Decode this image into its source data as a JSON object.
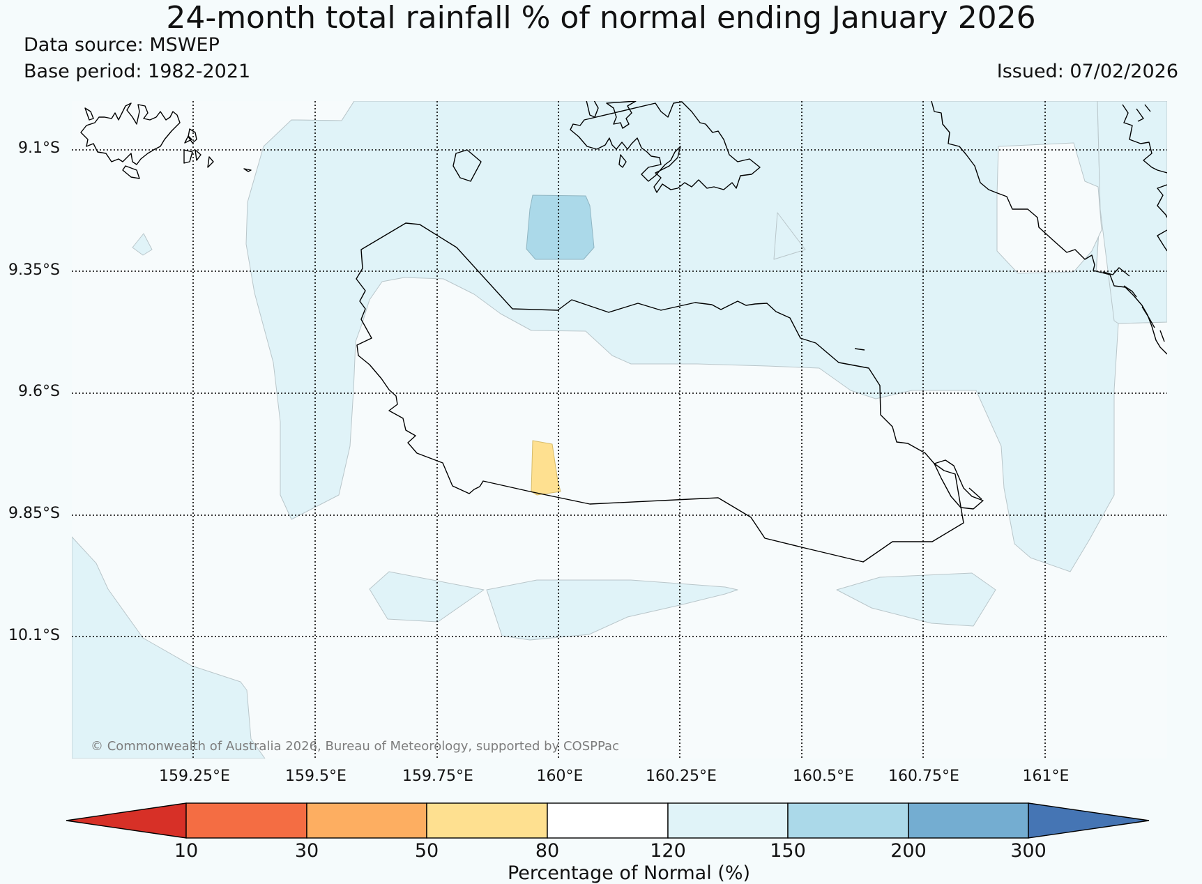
{
  "title": "24-month total rainfall % of normal ending January 2026",
  "data_source": "Data source: MSWEP",
  "base_period": "Base period: 1982-2021",
  "issued": "Issued: 07/02/2026",
  "copyright": "© Commonwealth of Australia 2026, Bureau of Meteorology, supported by COSPPac",
  "latitude_labels": [
    "9.1°S",
    "9.35°S",
    "9.6°S",
    "9.85°S",
    "10.1°S"
  ],
  "longitude_labels": [
    "159.25°E",
    "159.5°E",
    "159.75°E",
    "160°E",
    "160.25°E",
    "160.5°E",
    "160.75°E",
    "161°E"
  ],
  "colorbar": {
    "label": "Percentage of Normal (%)",
    "ticks": [
      "10",
      "30",
      "50",
      "80",
      "120",
      "150",
      "200",
      "300"
    ],
    "colors": {
      "below_10": "#d73027",
      "10_30": "#f46d43",
      "30_50": "#fdae61",
      "50_80": "#fee090",
      "80_120": "#ffffff",
      "120_150": "#e0f3f8",
      "150_200": "#abd9e9",
      "200_300": "#74add1",
      "above_300": "#4575b4"
    }
  },
  "colors": {
    "background": "#f5fbfc",
    "coastline": "#000000",
    "contour_edge": "#9aa8ad",
    "grid": "#000000"
  }
}
